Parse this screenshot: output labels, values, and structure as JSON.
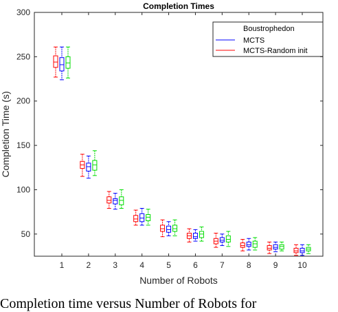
{
  "chart_data": {
    "type": "boxplot",
    "title": "Completion Times",
    "xlabel": "Number of Robots",
    "ylabel": "Completion Time (s)",
    "categories": [
      "1",
      "2",
      "3",
      "4",
      "5",
      "6",
      "7",
      "8",
      "9",
      "10"
    ],
    "yticks": [
      "50",
      "100",
      "150",
      "200",
      "250",
      "300"
    ],
    "ylim": [
      25,
      300
    ],
    "grid": false,
    "legend_position": "top-right",
    "series": [
      {
        "name": "Boustrophedon",
        "color": "#ff0000",
        "boxes": [
          {
            "min": 227,
            "q1": 238,
            "median": 244,
            "q3": 251,
            "max": 261
          },
          {
            "min": 115,
            "q1": 124,
            "median": 128,
            "q3": 132,
            "max": 140
          },
          {
            "min": 79,
            "q1": 85,
            "median": 88,
            "q3": 92,
            "max": 98
          },
          {
            "min": 60,
            "q1": 64,
            "median": 67,
            "q3": 71,
            "max": 77
          },
          {
            "min": 47,
            "q1": 53,
            "median": 56,
            "q3": 60,
            "max": 66
          },
          {
            "min": 41,
            "q1": 45,
            "median": 48,
            "q3": 51,
            "max": 56
          },
          {
            "min": 35,
            "q1": 39,
            "median": 42,
            "q3": 45,
            "max": 51
          },
          {
            "min": 31,
            "q1": 35,
            "median": 37,
            "q3": 40,
            "max": 44
          },
          {
            "min": 28,
            "q1": 32,
            "median": 34,
            "q3": 37,
            "max": 41
          },
          {
            "min": 26,
            "q1": 29,
            "median": 31,
            "q3": 34,
            "max": 38
          }
        ]
      },
      {
        "name": "MCTS",
        "color": "#0000ff",
        "boxes": [
          {
            "min": 224,
            "q1": 234,
            "median": 241,
            "q3": 249,
            "max": 261
          },
          {
            "min": 113,
            "q1": 121,
            "median": 126,
            "q3": 130,
            "max": 138
          },
          {
            "min": 78,
            "q1": 84,
            "median": 88,
            "q3": 90,
            "max": 96
          },
          {
            "min": 60,
            "q1": 64,
            "median": 68,
            "q3": 73,
            "max": 79
          },
          {
            "min": 48,
            "q1": 52,
            "median": 55,
            "q3": 59,
            "max": 64
          },
          {
            "min": 42,
            "q1": 45,
            "median": 47,
            "q3": 51,
            "max": 55
          },
          {
            "min": 37,
            "q1": 41,
            "median": 43,
            "q3": 46,
            "max": 50
          },
          {
            "min": 32,
            "q1": 36,
            "median": 38,
            "q3": 41,
            "max": 45
          },
          {
            "min": 30,
            "q1": 33,
            "median": 35,
            "q3": 38,
            "max": 41
          },
          {
            "min": 26,
            "q1": 29,
            "median": 31,
            "q3": 34,
            "max": 38
          }
        ]
      },
      {
        "name": "MCTS-Random init",
        "color": "#00dd00",
        "boxes": [
          {
            "min": 226,
            "q1": 237,
            "median": 243,
            "q3": 250,
            "max": 261
          },
          {
            "min": 116,
            "q1": 122,
            "median": 128,
            "q3": 133,
            "max": 144
          },
          {
            "min": 79,
            "q1": 83,
            "median": 88,
            "q3": 92,
            "max": 100
          },
          {
            "min": 60,
            "q1": 65,
            "median": 69,
            "q3": 72,
            "max": 78
          },
          {
            "min": 48,
            "q1": 53,
            "median": 56,
            "q3": 60,
            "max": 66
          },
          {
            "min": 42,
            "q1": 46,
            "median": 50,
            "q3": 53,
            "max": 58
          },
          {
            "min": 36,
            "q1": 41,
            "median": 44,
            "q3": 48,
            "max": 53
          },
          {
            "min": 32,
            "q1": 35,
            "median": 39,
            "q3": 42,
            "max": 46
          },
          {
            "min": 31,
            "q1": 33,
            "median": 36,
            "q3": 38,
            "max": 41
          },
          {
            "min": 28,
            "q1": 31,
            "median": 33,
            "q3": 35,
            "max": 38
          }
        ]
      }
    ]
  },
  "caption": "Completion time versus Number of Robots for"
}
